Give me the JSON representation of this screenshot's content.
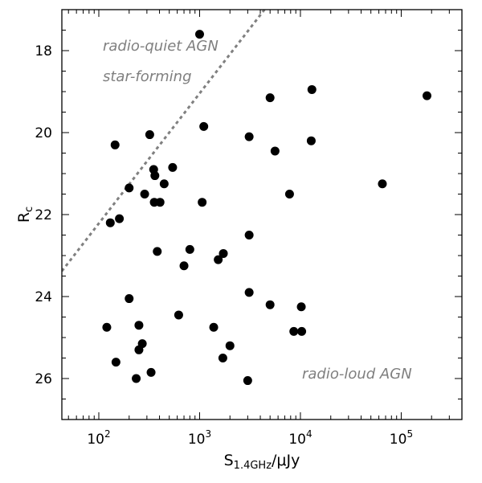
{
  "chart_data": {
    "type": "scatter",
    "xlabel": "S",
    "xlabel_sub": "1.4GHz",
    "xlabel_unit": "/μJy",
    "ylabel": "R",
    "ylabel_sub": "c",
    "x_scale": "log",
    "xlim": [
      43,
      400000
    ],
    "ylim": [
      27,
      17
    ],
    "y_inverted": true,
    "x_ticks": [
      {
        "value": 100,
        "base": "10",
        "exp": "2"
      },
      {
        "value": 1000,
        "base": "10",
        "exp": "3"
      },
      {
        "value": 10000,
        "base": "10",
        "exp": "4"
      },
      {
        "value": 100000,
        "base": "10",
        "exp": "5"
      }
    ],
    "y_ticks": [
      18,
      20,
      22,
      24,
      26
    ],
    "grid": false,
    "marker_color": "#000000",
    "line_color": "#808080",
    "annotations": [
      {
        "text": "radio-quiet AGN"
      },
      {
        "text": "star-forming"
      },
      {
        "text": "radio-loud AGN"
      }
    ],
    "divider_line": {
      "style": "dotted",
      "points": [
        [
          43,
          23.38
        ],
        [
          4400,
          17.0
        ]
      ]
    },
    "points": [
      [
        1000,
        17.6
      ],
      [
        13000,
        18.95
      ],
      [
        5000,
        19.15
      ],
      [
        180000,
        19.1
      ],
      [
        320,
        20.05
      ],
      [
        1100,
        19.85
      ],
      [
        3100,
        20.1
      ],
      [
        12800,
        20.2
      ],
      [
        145,
        20.3
      ],
      [
        5600,
        20.45
      ],
      [
        540,
        20.85
      ],
      [
        350,
        20.9
      ],
      [
        360,
        21.05
      ],
      [
        445,
        21.25
      ],
      [
        200,
        21.35
      ],
      [
        65000,
        21.25
      ],
      [
        285,
        21.5
      ],
      [
        7800,
        21.5
      ],
      [
        355,
        21.7
      ],
      [
        405,
        21.7
      ],
      [
        1060,
        21.7
      ],
      [
        160,
        22.1
      ],
      [
        130,
        22.2
      ],
      [
        3100,
        22.5
      ],
      [
        380,
        22.9
      ],
      [
        800,
        22.85
      ],
      [
        1720,
        22.95
      ],
      [
        1530,
        23.1
      ],
      [
        700,
        23.25
      ],
      [
        3100,
        23.9
      ],
      [
        200,
        24.05
      ],
      [
        5000,
        24.2
      ],
      [
        10200,
        24.25
      ],
      [
        620,
        24.45
      ],
      [
        120,
        24.75
      ],
      [
        250,
        24.7
      ],
      [
        1380,
        24.75
      ],
      [
        8600,
        24.85
      ],
      [
        10300,
        24.85
      ],
      [
        270,
        25.15
      ],
      [
        2000,
        25.2
      ],
      [
        250,
        25.3
      ],
      [
        1700,
        25.5
      ],
      [
        148,
        25.6
      ],
      [
        330,
        25.85
      ],
      [
        235,
        26.0
      ],
      [
        3000,
        26.05
      ]
    ]
  }
}
